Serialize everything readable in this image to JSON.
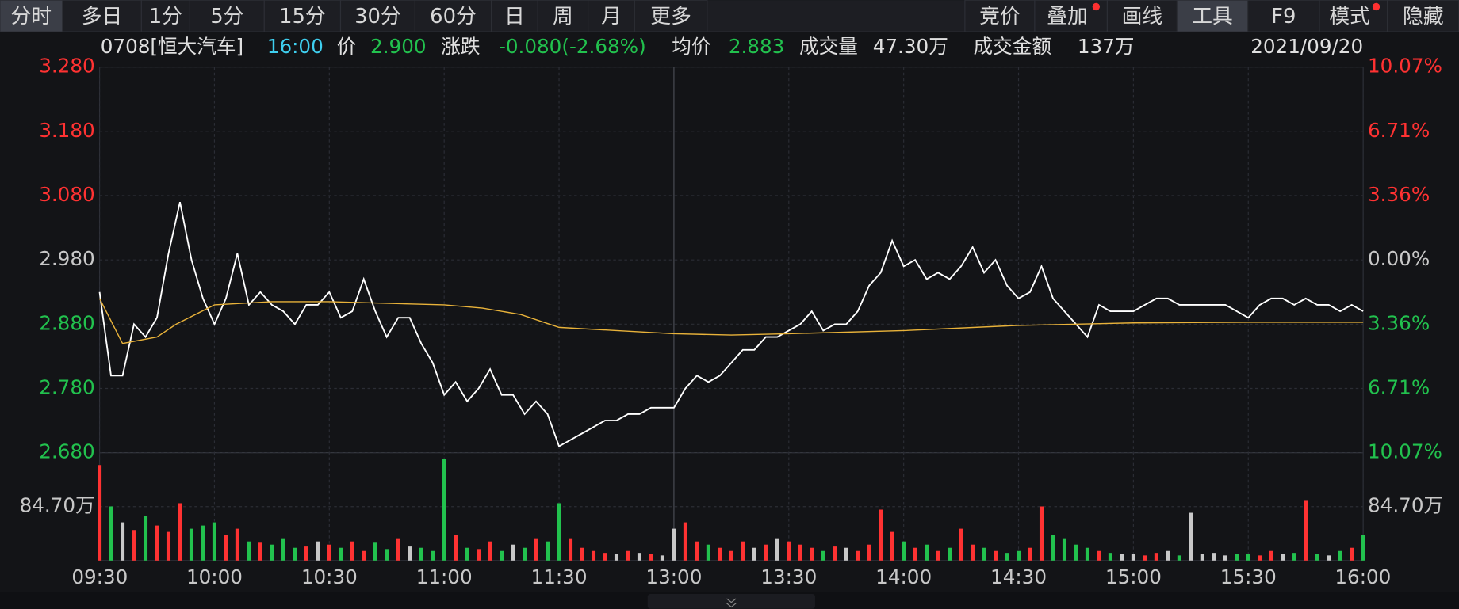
{
  "toolbar": {
    "left_tabs": [
      "分时",
      "多日",
      "1分",
      "5分",
      "15分",
      "30分",
      "60分",
      "日",
      "周",
      "月",
      "更多"
    ],
    "right_tabs": [
      "竞价",
      "叠加",
      "画线",
      "工具",
      "F9",
      "模式",
      "隐藏"
    ]
  },
  "info": {
    "stock": "0708[恒大汽车]",
    "time": "16:00",
    "price_label": "价",
    "price": "2.900",
    "change_label": "涨跌",
    "change": "-0.080(-2.68%)",
    "avg_label": "均价",
    "avg": "2.883",
    "volume_label": "成交量",
    "volume": "47.30万",
    "amount_label": "成交金额",
    "amount": "137万",
    "date": "2021/09/20"
  },
  "chart_data": [
    {
      "type": "line",
      "x": [
        0,
        3,
        6,
        9,
        12,
        15,
        18,
        21,
        24,
        27,
        30,
        33,
        36,
        39,
        42,
        45,
        48,
        51,
        54,
        57,
        60,
        63,
        66,
        69,
        72,
        75,
        78,
        81,
        84,
        87,
        90,
        93,
        96,
        99,
        102,
        105,
        108,
        111,
        114,
        117,
        120,
        123,
        126,
        129,
        132,
        135,
        138,
        141,
        144,
        147,
        150,
        153,
        156,
        159,
        162,
        165,
        168,
        171,
        174,
        177,
        180,
        183,
        186,
        189,
        192,
        195,
        198,
        201,
        204,
        207,
        210,
        213,
        216,
        219,
        222,
        225,
        228,
        231,
        234,
        237,
        240,
        243,
        246,
        249,
        252,
        255,
        258,
        261,
        264,
        267,
        270,
        273,
        276,
        279,
        282,
        285,
        288,
        291,
        294,
        297,
        300,
        303,
        306,
        309,
        312,
        315,
        318,
        321,
        324,
        327,
        330
      ],
      "xlim": [
        0,
        330
      ],
      "xticks": [
        {
          "value": 0,
          "label": "09:30"
        },
        {
          "value": 30,
          "label": "10:00"
        },
        {
          "value": 60,
          "label": "10:30"
        },
        {
          "value": 90,
          "label": "11:00"
        },
        {
          "value": 120,
          "label": "11:30"
        },
        {
          "value": 150,
          "label": "13:00"
        },
        {
          "value": 180,
          "label": "13:30"
        },
        {
          "value": 210,
          "label": "14:00"
        },
        {
          "value": 240,
          "label": "14:30"
        },
        {
          "value": 270,
          "label": "15:00"
        },
        {
          "value": 300,
          "label": "15:30"
        },
        {
          "value": 330,
          "label": "16:00"
        }
      ],
      "ylim": [
        2.68,
        3.28
      ],
      "yticks": [
        {
          "value": 3.28,
          "label": "3.280"
        },
        {
          "value": 3.18,
          "label": "3.180"
        },
        {
          "value": 3.08,
          "label": "3.080"
        },
        {
          "value": 2.98,
          "label": "2.980"
        },
        {
          "value": 2.88,
          "label": "2.880"
        },
        {
          "value": 2.78,
          "label": "2.780"
        },
        {
          "value": 2.68,
          "label": "2.680"
        }
      ],
      "y2lim": [
        -10.07,
        10.07
      ],
      "y2ticks": [
        {
          "value": 10.07,
          "label": "10.07%"
        },
        {
          "value": 6.71,
          "label": "6.71%"
        },
        {
          "value": 3.36,
          "label": "3.36%"
        },
        {
          "value": 0,
          "label": "0.00%"
        },
        {
          "value": -3.36,
          "label": "3.36%"
        },
        {
          "value": -6.71,
          "label": "6.71%"
        },
        {
          "value": -10.07,
          "label": "10.07%"
        }
      ],
      "grid": true,
      "up_color": "#ff3232",
      "down_color": "#22c24e",
      "flat_color": "#c8c8c8",
      "series": [
        {
          "name": "价",
          "color": "#ffffff",
          "values": [
            2.93,
            2.8,
            2.8,
            2.88,
            2.86,
            2.89,
            2.99,
            3.07,
            2.98,
            2.92,
            2.88,
            2.92,
            2.99,
            2.91,
            2.93,
            2.91,
            2.9,
            2.88,
            2.91,
            2.91,
            2.93,
            2.89,
            2.9,
            2.95,
            2.9,
            2.86,
            2.89,
            2.89,
            2.85,
            2.82,
            2.77,
            2.79,
            2.76,
            2.78,
            2.81,
            2.77,
            2.77,
            2.74,
            2.76,
            2.74,
            2.69,
            2.7,
            2.71,
            2.72,
            2.73,
            2.73,
            2.74,
            2.74,
            2.75,
            2.75,
            2.75,
            2.78,
            2.8,
            2.79,
            2.8,
            2.82,
            2.84,
            2.84,
            2.86,
            2.86,
            2.87,
            2.88,
            2.9,
            2.87,
            2.88,
            2.88,
            2.9,
            2.94,
            2.96,
            3.01,
            2.97,
            2.98,
            2.95,
            2.96,
            2.95,
            2.97,
            3.0,
            2.96,
            2.98,
            2.94,
            2.92,
            2.93,
            2.97,
            2.92,
            2.9,
            2.88,
            2.86,
            2.91,
            2.9,
            2.9,
            2.9,
            2.91,
            2.92,
            2.92,
            2.91,
            2.91,
            2.91,
            2.91,
            2.91,
            2.9,
            2.89,
            2.91,
            2.92,
            2.92,
            2.91,
            2.92,
            2.91,
            2.91,
            2.9,
            2.91,
            2.9
          ]
        },
        {
          "name": "均价",
          "color": "#e8b23a",
          "x": [
            0,
            6,
            15,
            20,
            30,
            45,
            60,
            90,
            100,
            110,
            120,
            135,
            150,
            165,
            180,
            210,
            240,
            270,
            300,
            330
          ],
          "values": [
            2.92,
            2.85,
            2.86,
            2.88,
            2.91,
            2.915,
            2.915,
            2.91,
            2.905,
            2.895,
            2.875,
            2.87,
            2.865,
            2.863,
            2.865,
            2.87,
            2.878,
            2.882,
            2.883,
            2.883
          ]
        }
      ]
    },
    {
      "type": "bar",
      "x": [
        0,
        3,
        6,
        9,
        12,
        15,
        18,
        21,
        24,
        27,
        30,
        33,
        36,
        39,
        42,
        45,
        48,
        51,
        54,
        57,
        60,
        63,
        66,
        69,
        72,
        75,
        78,
        81,
        84,
        87,
        90,
        93,
        96,
        99,
        102,
        105,
        108,
        111,
        114,
        117,
        120,
        123,
        126,
        129,
        132,
        135,
        138,
        141,
        144,
        147,
        150,
        153,
        156,
        159,
        162,
        165,
        168,
        171,
        174,
        177,
        180,
        183,
        186,
        189,
        192,
        195,
        198,
        201,
        204,
        207,
        210,
        213,
        216,
        219,
        222,
        225,
        228,
        231,
        234,
        237,
        240,
        243,
        246,
        249,
        252,
        255,
        258,
        261,
        264,
        267,
        270,
        273,
        276,
        279,
        282,
        285,
        288,
        291,
        294,
        297,
        300,
        303,
        306,
        309,
        312,
        315,
        318,
        321,
        324,
        327,
        330
      ],
      "xlim": [
        0,
        330
      ],
      "ylim": [
        0,
        169.4
      ],
      "yticks": [
        {
          "value": 84.7,
          "label": "84.70万"
        }
      ],
      "values": [
        150,
        85,
        60,
        48,
        70,
        55,
        45,
        90,
        50,
        55,
        60,
        40,
        50,
        30,
        28,
        25,
        35,
        20,
        22,
        30,
        25,
        20,
        30,
        15,
        28,
        18,
        35,
        22,
        20,
        15,
        160,
        40,
        20,
        18,
        30,
        15,
        25,
        20,
        35,
        30,
        90,
        35,
        20,
        15,
        12,
        10,
        15,
        12,
        10,
        8,
        50,
        60,
        30,
        25,
        20,
        15,
        30,
        20,
        25,
        35,
        30,
        25,
        20,
        15,
        22,
        20,
        15,
        25,
        80,
        45,
        30,
        20,
        25,
        15,
        20,
        50,
        25,
        20,
        15,
        12,
        15,
        20,
        85,
        40,
        35,
        25,
        20,
        15,
        12,
        10,
        10,
        8,
        12,
        15,
        8,
        75,
        10,
        12,
        8,
        10,
        10,
        8,
        15,
        10,
        12,
        95,
        10,
        8,
        15,
        20,
        40
      ]
    }
  ]
}
